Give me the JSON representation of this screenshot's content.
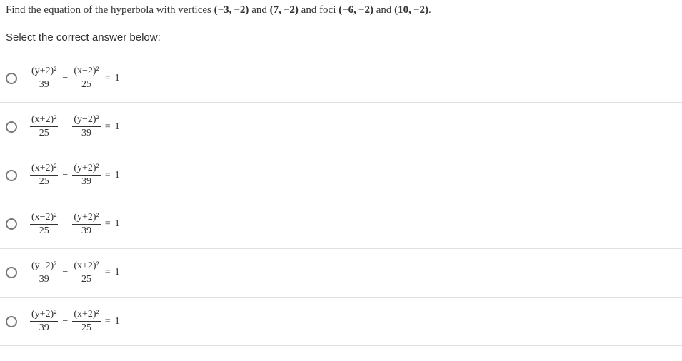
{
  "question": {
    "prefix": "Find the equation of the hyperbola with vertices ",
    "v1": "(−3, −2)",
    "and1": " and ",
    "v2": "(7, −2)",
    "mid": " and foci ",
    "f1": "(−6, −2)",
    "and2": " and ",
    "f2": "(10, −2)",
    "suffix": "."
  },
  "prompt": "Select the correct answer below:",
  "minus": "−",
  "equals": "=",
  "one": "1",
  "options": [
    {
      "n1": "(y+2)²",
      "d1": "39",
      "n2": "(x−2)²",
      "d2": "25"
    },
    {
      "n1": "(x+2)²",
      "d1": "25",
      "n2": "(y−2)²",
      "d2": "39"
    },
    {
      "n1": "(x+2)²",
      "d1": "25",
      "n2": "(y+2)²",
      "d2": "39"
    },
    {
      "n1": "(x−2)²",
      "d1": "25",
      "n2": "(y+2)²",
      "d2": "39"
    },
    {
      "n1": "(y−2)²",
      "d1": "39",
      "n2": "(x+2)²",
      "d2": "25"
    },
    {
      "n1": "(y+2)²",
      "d1": "39",
      "n2": "(x+2)²",
      "d2": "25"
    }
  ]
}
